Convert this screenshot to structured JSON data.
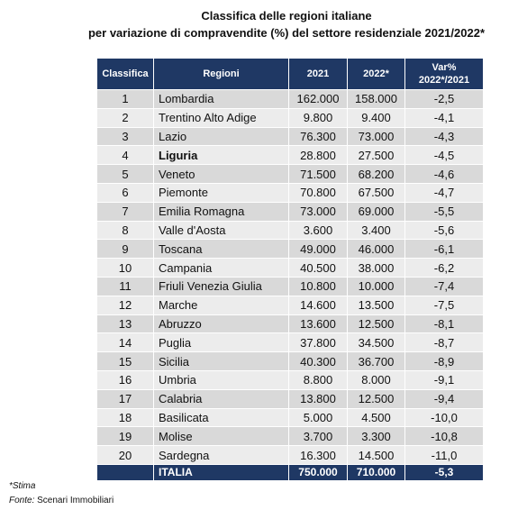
{
  "header": {
    "title": "Classifica delle regioni italiane",
    "subtitle": "per variazione di compravendite (%)  del settore residenziale 2021/2022*"
  },
  "table": {
    "columns": [
      "Classifica",
      "Regioni",
      "2021",
      "2022*",
      "Var%\n2022*/2021"
    ],
    "rows": [
      [
        "1",
        "Lombardia",
        "162.000",
        "158.000",
        "-2,5"
      ],
      [
        "2",
        "Trentino Alto Adige",
        "9.800",
        "9.400",
        "-4,1"
      ],
      [
        "3",
        "Lazio",
        "76.300",
        "73.000",
        "-4,3"
      ],
      [
        "4",
        "Liguria",
        "28.800",
        "27.500",
        "-4,5"
      ],
      [
        "5",
        "Veneto",
        "71.500",
        "68.200",
        "-4,6"
      ],
      [
        "6",
        "Piemonte",
        "70.800",
        "67.500",
        "-4,7"
      ],
      [
        "7",
        "Emilia Romagna",
        "73.000",
        "69.000",
        "-5,5"
      ],
      [
        "8",
        "Valle d'Aosta",
        "3.600",
        "3.400",
        "-5,6"
      ],
      [
        "9",
        "Toscana",
        "49.000",
        "46.000",
        "-6,1"
      ],
      [
        "10",
        "Campania",
        "40.500",
        "38.000",
        "-6,2"
      ],
      [
        "11",
        "Friuli Venezia Giulia",
        "10.800",
        "10.000",
        "-7,4"
      ],
      [
        "12",
        "Marche",
        "14.600",
        "13.500",
        "-7,5"
      ],
      [
        "13",
        "Abruzzo",
        "13.600",
        "12.500",
        "-8,1"
      ],
      [
        "14",
        "Puglia",
        "37.800",
        "34.500",
        "-8,7"
      ],
      [
        "15",
        "Sicilia",
        "40.300",
        "36.700",
        "-8,9"
      ],
      [
        "16",
        "Umbria",
        "8.800",
        "8.000",
        "-9,1"
      ],
      [
        "17",
        "Calabria",
        "13.800",
        "12.500",
        "-9,4"
      ],
      [
        "18",
        "Basilicata",
        "5.000",
        "4.500",
        "-10,0"
      ],
      [
        "19",
        "Molise",
        "3.700",
        "3.300",
        "-10,8"
      ],
      [
        "20",
        "Sardegna",
        "16.300",
        "14.500",
        "-11,0"
      ]
    ],
    "total": [
      "ITALIA",
      "750.000",
      "710.000",
      "-5,3"
    ]
  },
  "footnotes": {
    "note": "*Stima",
    "source_label": "Fonte:",
    "source": "Scenari Immobiliari"
  }
}
